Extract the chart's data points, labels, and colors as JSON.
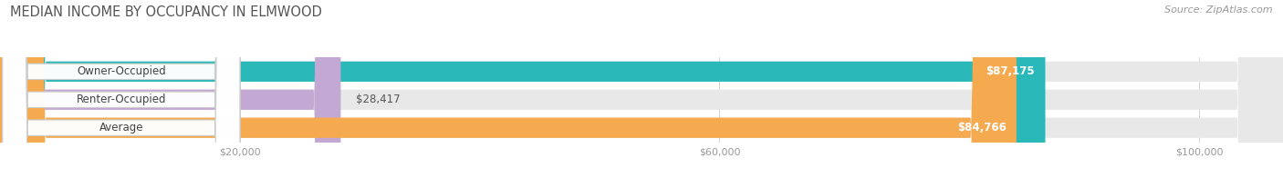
{
  "title": "MEDIAN INCOME BY OCCUPANCY IN ELMWOOD",
  "source": "Source: ZipAtlas.com",
  "categories": [
    "Owner-Occupied",
    "Renter-Occupied",
    "Average"
  ],
  "values": [
    87175,
    28417,
    84766
  ],
  "bar_colors": [
    "#2ab8b8",
    "#c4a8d4",
    "#f5aa50"
  ],
  "value_labels": [
    "$87,175",
    "$28,417",
    "$84,766"
  ],
  "x_max": 107000,
  "x_ticks": [
    20000,
    60000,
    100000
  ],
  "x_tick_labels": [
    "$20,000",
    "$60,000",
    "$100,000"
  ],
  "bar_height": 0.72,
  "bar_bg_color": "#e8e8e8",
  "bar_gap_color": "#f0f0f0",
  "title_color": "#555555",
  "source_color": "#999999",
  "label_font_size": 8.5,
  "value_font_size": 8.5,
  "title_font_size": 10.5
}
